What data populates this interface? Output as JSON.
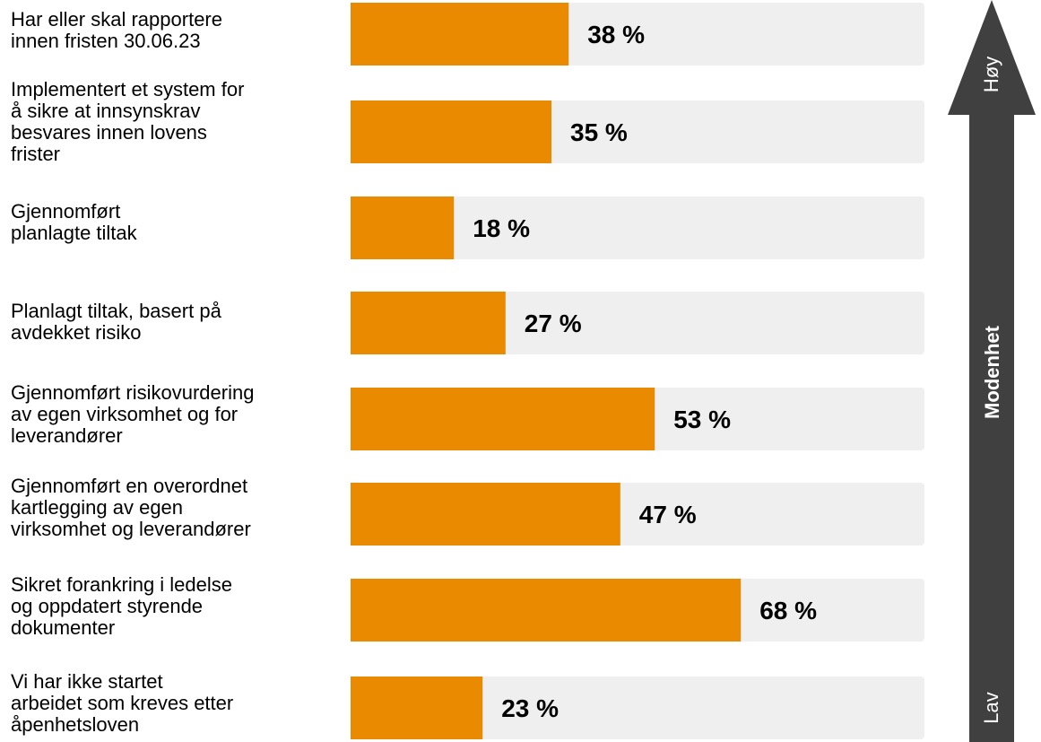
{
  "chart_data": {
    "type": "bar",
    "orientation": "horizontal",
    "categories": [
      "Har eller skal rapportere\ninnen fristen 30.06.23",
      "Implementert et system for\nå sikre at innsynskrav\nbesvares innen lovens\nfrister",
      "Gjennomført\nplanlagte tiltak",
      "Planlagt tiltak, basert på\navdekket risiko",
      "Gjennomført risikovurdering\nav egen virksomhet og for\nleverandører",
      "Gjennomført en overordnet\nkartlegging av egen\nvirksomhet og leverandører",
      "Sikret forankring i ledelse\nog oppdatert styrende\ndokumenter",
      "Vi har ikke startet\narbeidet som kreves etter\nåpenhetsloven"
    ],
    "values": [
      38,
      35,
      18,
      27,
      53,
      47,
      68,
      23
    ],
    "value_labels": [
      "38 %",
      "35 %",
      "18 %",
      "27 %",
      "53 %",
      "47 %",
      "68 %",
      "23 %"
    ],
    "xlim": [
      0,
      100
    ],
    "grid": false,
    "legend": "none",
    "colors": {
      "bar": "#E98A00",
      "track": "#EFEFEF",
      "arrow": "#404040",
      "value_text": "#000000",
      "arrow_text": "#FFFFFF"
    },
    "maturity_arrow": {
      "label": "Modenhet",
      "high_label": "Høy",
      "low_label": "Lav"
    }
  }
}
